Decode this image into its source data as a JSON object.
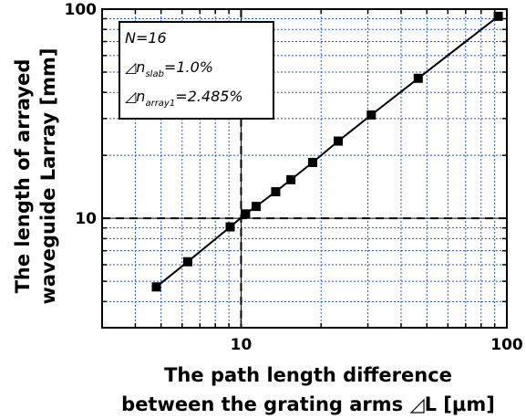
{
  "chart_data": {
    "type": "scatter",
    "x_scale": "log",
    "y_scale": "log",
    "xlim": [
      3,
      100
    ],
    "ylim": [
      3,
      100
    ],
    "grid": true,
    "x_tick_labels": [
      "10",
      "100"
    ],
    "y_tick_labels": [
      "10",
      "100"
    ],
    "xlabel_lines": [
      "The path length difference",
      "between the grating arms ◿L [μm]"
    ],
    "ylabel_lines": [
      "The length of arrayed",
      "waveguide Larray [mm]"
    ],
    "annotation": {
      "line1": "N=16",
      "line2": {
        "prefix": "◿n",
        "sub": "slab",
        "suffix": "=1.0%"
      },
      "line3": {
        "prefix": "◿n",
        "sub": "array1",
        "suffix": "=2.485%"
      }
    },
    "reference_lines": {
      "x": 10,
      "y": 10
    },
    "series": [
      {
        "x": [
          4.8,
          6.3,
          9.1,
          10.4,
          11.4,
          13.5,
          15.4,
          18.6,
          23.2,
          30.9,
          46.4,
          92.8
        ],
        "y": [
          4.7,
          6.2,
          9.1,
          10.5,
          11.4,
          13.4,
          15.3,
          18.5,
          23.4,
          31.2,
          46.7,
          92.4
        ]
      }
    ],
    "colors": {
      "marker": "#000000",
      "line": "#000000",
      "grid": "#2255cc",
      "frame": "#000000"
    }
  }
}
